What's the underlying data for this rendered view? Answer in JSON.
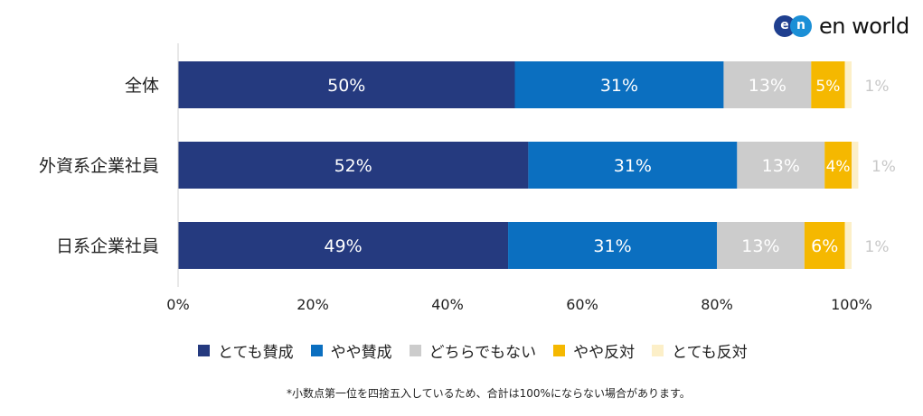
{
  "brand": {
    "logo_mark_e": "e",
    "logo_mark_n": "n",
    "logo_text": "en world",
    "colors": {
      "mark_e": "#1f3f8f",
      "mark_n": "#1b8fd6"
    }
  },
  "chart_data": {
    "type": "bar",
    "orientation": "horizontal",
    "stacked": true,
    "categories": [
      "全体",
      "外資系企業社員",
      "日系企業社員"
    ],
    "series": [
      {
        "name": "とても賛成",
        "values": [
          50,
          52,
          49
        ],
        "labels": [
          "50%",
          "52%",
          "49%"
        ],
        "color": "#253a7f",
        "label_color": "#ffffff"
      },
      {
        "name": "やや賛成",
        "values": [
          31,
          31,
          31
        ],
        "labels": [
          "31%",
          "31%",
          "31%"
        ],
        "color": "#0b6fc0",
        "label_color": "#ffffff"
      },
      {
        "name": "どちらでもない",
        "values": [
          13,
          13,
          13
        ],
        "labels": [
          "13%",
          "13%",
          "13%"
        ],
        "color": "#cccccc",
        "label_color": "#ffffff"
      },
      {
        "name": "やや反対",
        "values": [
          5,
          4,
          6
        ],
        "labels": [
          "5%",
          "4%",
          "6%"
        ],
        "color": "#f5b800",
        "label_color": "#ffffff"
      },
      {
        "name": "とても反対",
        "values": [
          1,
          1,
          1
        ],
        "labels": [
          "1%",
          "1%",
          "1%"
        ],
        "color": "#fcefc8",
        "label_color": "#c8c8c8"
      }
    ],
    "x_ticks": [
      "0%",
      "20%",
      "40%",
      "60%",
      "80%",
      "100%"
    ],
    "xlim": [
      0,
      100
    ],
    "grid": false,
    "legend_position": "bottom",
    "footnote": "*小数点第一位を四捨五入しているため、合計は100%にならない場合があります。"
  }
}
